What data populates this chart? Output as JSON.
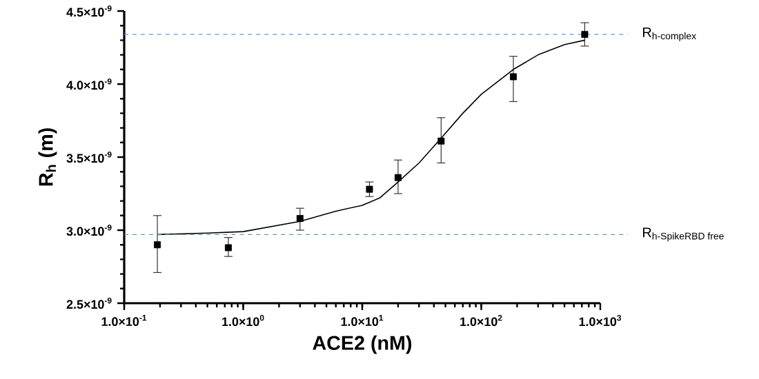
{
  "chart_data": {
    "type": "scatter",
    "xlabel": "**ACE2 (nM)**",
    "ylabel": "**R$_{h}$ (m)**",
    "log": "x",
    "xlim": [
      0.1,
      1000
    ],
    "ylim": [
      2.5e-09,
      4.5e-09
    ],
    "xticks": [
      {
        "value": 0.1,
        "label": "1.0×10$^{-1}$"
      },
      {
        "value": 1,
        "label": "1.0×10$^{0}$"
      },
      {
        "value": 10,
        "label": "1.0×10$^{1}$"
      },
      {
        "value": 100,
        "label": "1.0×10$^{2}$"
      },
      {
        "value": 1000,
        "label": "1.0×10$^{3}$"
      }
    ],
    "yticks": [
      {
        "value": 2.5e-09,
        "label": "2.5×10$^{-9}$"
      },
      {
        "value": 3e-09,
        "label": "3.0×10$^{-9}$"
      },
      {
        "value": 3.5e-09,
        "label": "3.5×10$^{-9}$"
      },
      {
        "value": 4e-09,
        "label": "4.0×10$^{-9}$"
      },
      {
        "value": 4.5e-09,
        "label": "4.5×10$^{-9}$"
      }
    ],
    "grid": false,
    "series": [
      {
        "color": "#000000",
        "marker": "square",
        "x": [
          0.19,
          0.75,
          3,
          11.5,
          20,
          46,
          186,
          740
        ],
        "values": [
          2.9e-09,
          2.88e-09,
          3.08e-09,
          3.28e-09,
          3.36e-09,
          3.61e-09,
          4.05e-09,
          4.34e-09
        ],
        "errors": [
          [
            2.71e-09,
            3.1e-09
          ],
          [
            2.82e-09,
            2.95e-09
          ],
          [
            3e-09,
            3.15e-09
          ],
          [
            3.23e-09,
            3.33e-09
          ],
          [
            3.25e-09,
            3.48e-09
          ],
          [
            3.46e-09,
            3.77e-09
          ],
          [
            3.88e-09,
            4.19e-09
          ],
          [
            4.26e-09,
            4.42e-09
          ]
        ]
      },
      {
        "type": "line",
        "color": "#000000",
        "marker": "none",
        "x": [
          0.19,
          0.5,
          1,
          3,
          6,
          10,
          14,
          20,
          30,
          46,
          70,
          100,
          186,
          300,
          500,
          740
        ],
        "values": [
          2.97e-09,
          2.98e-09,
          2.99e-09,
          3.06e-09,
          3.13e-09,
          3.17e-09,
          3.22e-09,
          3.33e-09,
          3.46e-09,
          3.63e-09,
          3.8e-09,
          3.93e-09,
          4.1e-09,
          4.2e-09,
          4.27e-09,
          4.3e-09
        ]
      }
    ],
    "ref_lines": [
      {
        "axis": "y",
        "value": 4.34e-09,
        "label": "\\text{R}_{\\text{h-complex}}",
        "color": "#5b9bd5",
        "line_style": "dashed"
      },
      {
        "axis": "y",
        "value": 2.97e-09,
        "label": "\\text{R}_{\\text{h-SpikeRBD free}}",
        "color": "#5b9bd5",
        "line_style": "dashed"
      }
    ]
  }
}
